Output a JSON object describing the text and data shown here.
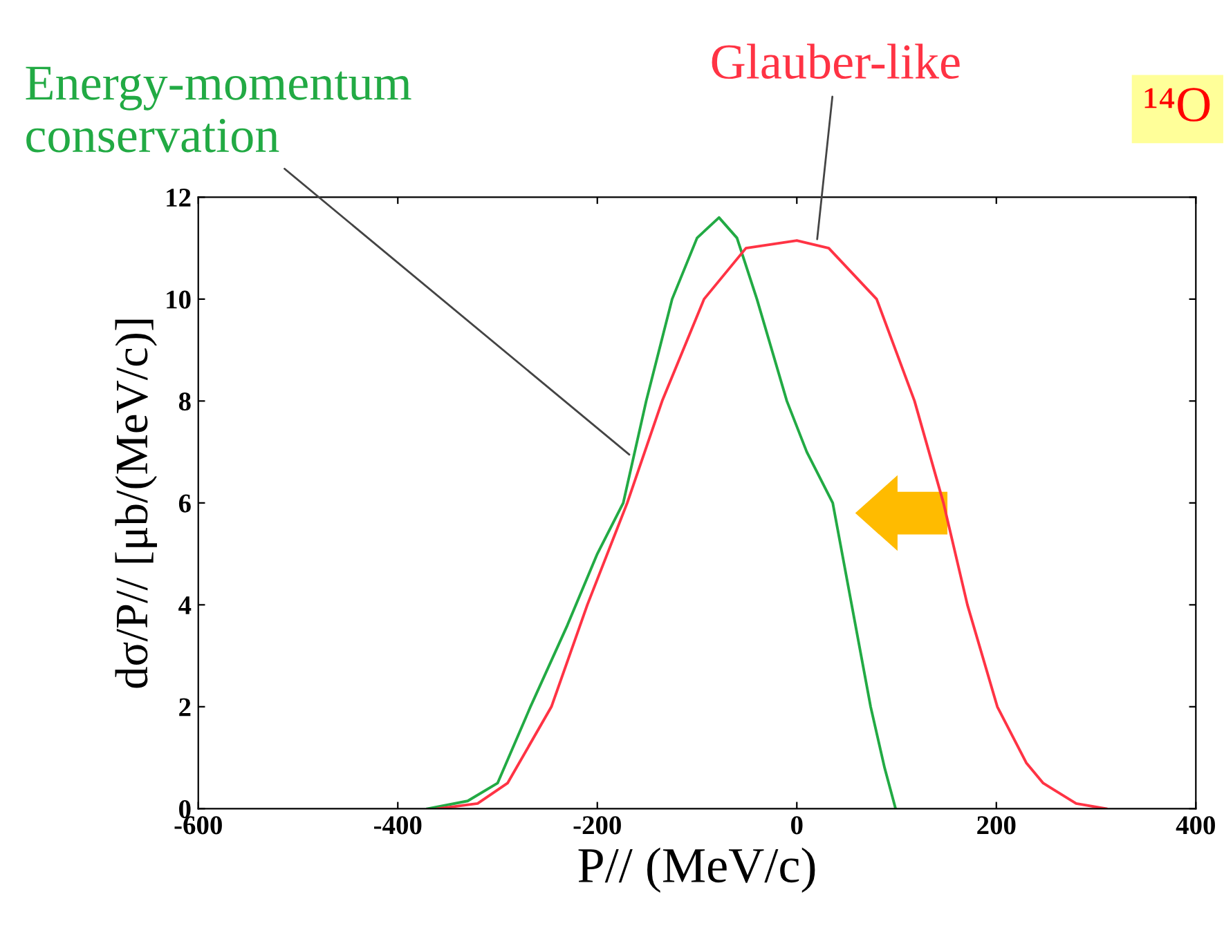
{
  "chart_data": {
    "type": "line",
    "xlabel": "P// (MeV/c)",
    "ylabel": "dσ/P// [μb/(MeV/c)]",
    "xlim": [
      -600,
      400
    ],
    "ylim": [
      0,
      12
    ],
    "xticks": [
      -600,
      -400,
      -200,
      0,
      200,
      400
    ],
    "yticks": [
      0,
      2,
      4,
      6,
      8,
      10,
      12
    ],
    "grid": false,
    "marker": "none",
    "line_style": "solid",
    "series": [
      {
        "color": "#22aa44",
        "x": [
          -370,
          -330,
          -300,
          -267,
          -230,
          -200,
          -174,
          -151,
          -125,
          -100,
          -78,
          -60,
          -40,
          -10,
          10,
          36,
          55,
          74,
          88,
          99
        ],
        "values": [
          0,
          0.15,
          0.5,
          2,
          3.6,
          5,
          6,
          8,
          10,
          11.2,
          11.6,
          11.2,
          10,
          8,
          7,
          6,
          4,
          2,
          0.8,
          0
        ]
      },
      {
        "color": "#ff3344",
        "x": [
          -360,
          -320,
          -290,
          -246,
          -210,
          -170,
          -135,
          -93,
          -51,
          0,
          32,
          80,
          118,
          147,
          171,
          201,
          230,
          247,
          280,
          310
        ],
        "values": [
          0,
          0.1,
          0.5,
          2,
          4,
          6,
          8,
          10,
          11,
          11.15,
          11,
          10,
          8,
          6,
          4,
          2,
          0.9,
          0.5,
          0.1,
          0
        ]
      }
    ],
    "annotations": [
      {
        "text": "Energy-momentum conservation",
        "x": -165,
        "y": 6.9
      },
      {
        "text": "Glauber-like",
        "x": 20,
        "y": 11.1
      },
      "¹⁴O"
    ]
  }
}
